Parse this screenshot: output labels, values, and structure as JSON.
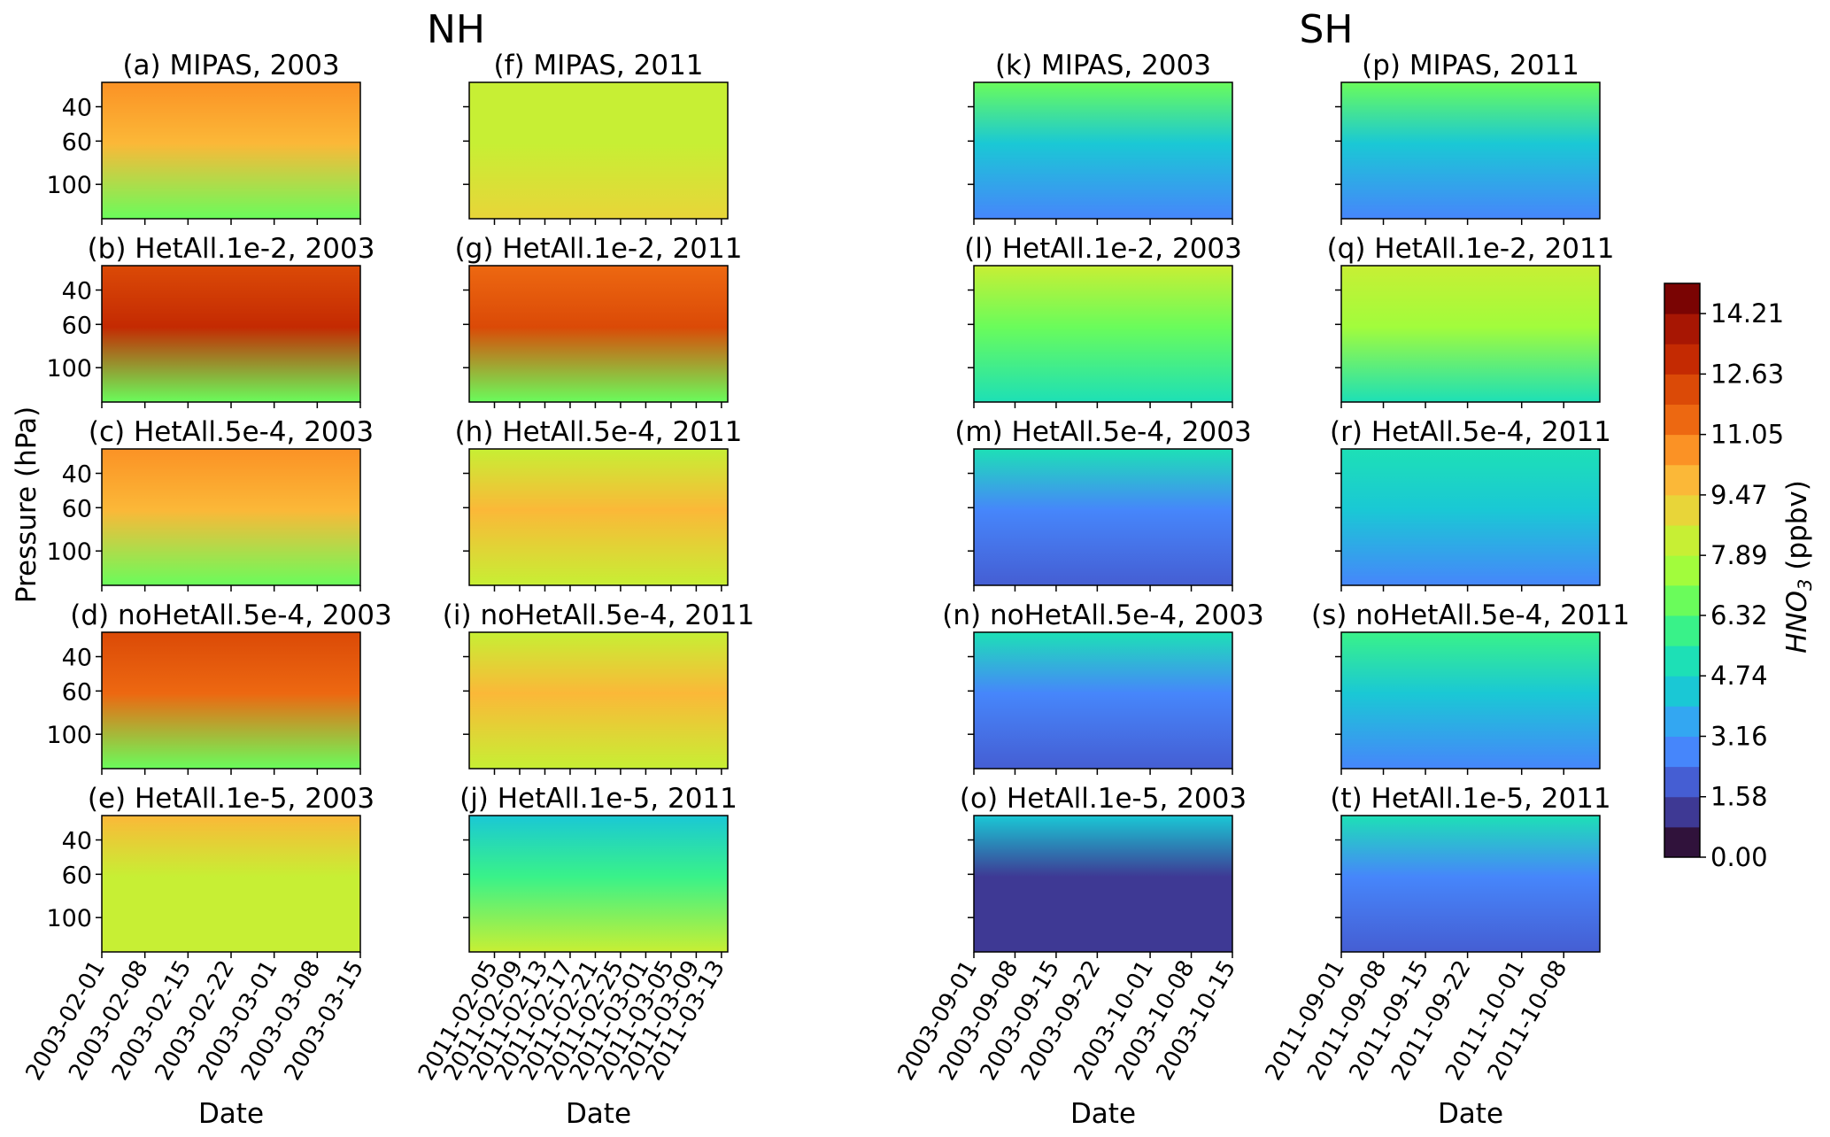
{
  "figure": {
    "hemisphere_labels": [
      "NH",
      "SH"
    ],
    "ylabel": "Pressure (hPa)",
    "xlabel": "Date",
    "colorbar_label": "HNO",
    "colorbar_subscript": "3",
    "colorbar_unit": " (ppbv)"
  },
  "chart_data": {
    "type": "heatmap",
    "variable": "HNO3 (ppbv)",
    "ylabel": "Pressure (hPa)",
    "xlabel": "Date",
    "y_ticks": [
      40,
      60,
      100
    ],
    "y_scale": "log",
    "ylim_hPa": [
      150,
      30
    ],
    "colorbar_ticks": [
      "0.00",
      "1.58",
      "3.16",
      "4.74",
      "6.32",
      "7.89",
      "9.47",
      "11.05",
      "12.63",
      "14.21"
    ],
    "color_levels": [
      0,
      0.79,
      1.58,
      2.37,
      3.16,
      3.95,
      4.74,
      5.53,
      6.32,
      7.11,
      7.89,
      8.68,
      9.47,
      10.26,
      11.05,
      11.84,
      12.63,
      13.42,
      14.21,
      15.0
    ],
    "columns": [
      {
        "hemisphere": "NH",
        "year": 2003,
        "start": "2003-02-01",
        "end": "2003-03-15",
        "x_ticks": [
          "2003-02-01",
          "2003-02-08",
          "2003-02-15",
          "2003-02-22",
          "2003-03-01",
          "2003-03-08",
          "2003-03-15"
        ]
      },
      {
        "hemisphere": "NH",
        "year": 2011,
        "start": "2011-02-01",
        "end": "2011-03-14",
        "x_ticks": [
          "2011-02-05",
          "2011-02-09",
          "2011-02-13",
          "2011-02-17",
          "2011-02-21",
          "2011-02-25",
          "2011-03-01",
          "2011-03-05",
          "2011-03-09",
          "2011-03-13"
        ]
      },
      {
        "hemisphere": "SH",
        "year": 2003,
        "start": "2003-09-01",
        "end": "2003-10-15",
        "x_ticks": [
          "2003-09-01",
          "2003-09-08",
          "2003-09-15",
          "2003-09-22",
          "2003-10-01",
          "2003-10-08",
          "2003-10-15"
        ]
      },
      {
        "hemisphere": "SH",
        "year": 2011,
        "start": "2011-09-01",
        "end": "2011-10-14",
        "x_ticks": [
          "2011-09-01",
          "2011-09-08",
          "2011-09-15",
          "2011-09-22",
          "2011-10-01",
          "2011-10-08"
        ]
      }
    ],
    "panels": [
      {
        "col": 0,
        "row": 0,
        "title": "(a) MIPAS, 2003",
        "top": 11.0,
        "mid": 9.5,
        "bottom": 7.0
      },
      {
        "col": 0,
        "row": 1,
        "title": "(b) HetAll.1e-2, 2003",
        "top": 12.0,
        "mid": 13.0,
        "bottom": 6.5
      },
      {
        "col": 0,
        "row": 2,
        "title": "(c) HetAll.5e-4, 2003",
        "top": 11.0,
        "mid": 10.0,
        "bottom": 6.8
      },
      {
        "col": 0,
        "row": 3,
        "title": "(d) noHetAll.5e-4, 2003",
        "top": 12.5,
        "mid": 11.5,
        "bottom": 7.0
      },
      {
        "col": 0,
        "row": 4,
        "title": "(e) HetAll.1e-5, 2003",
        "top": 10.0,
        "mid": 8.0,
        "bottom": 8.5
      },
      {
        "col": 1,
        "row": 0,
        "title": "(f) MIPAS, 2011",
        "top": 8.0,
        "mid": 8.5,
        "bottom": 8.8
      },
      {
        "col": 1,
        "row": 1,
        "title": "(g) HetAll.1e-2, 2011",
        "top": 11.5,
        "mid": 12.0,
        "bottom": 6.5
      },
      {
        "col": 1,
        "row": 2,
        "title": "(h) HetAll.5e-4, 2011",
        "top": 8.0,
        "mid": 9.5,
        "bottom": 8.5
      },
      {
        "col": 1,
        "row": 3,
        "title": "(i) noHetAll.5e-4, 2011",
        "top": 8.5,
        "mid": 10.0,
        "bottom": 8.5
      },
      {
        "col": 1,
        "row": 4,
        "title": "(j) HetAll.1e-5, 2011",
        "top": 4.5,
        "mid": 6.0,
        "bottom": 8.0
      },
      {
        "col": 2,
        "row": 0,
        "title": "(k) MIPAS, 2003",
        "top": 7.0,
        "mid": 4.0,
        "bottom": 2.5
      },
      {
        "col": 2,
        "row": 1,
        "title": "(l) HetAll.1e-2, 2003",
        "top": 8.5,
        "mid": 7.0,
        "bottom": 5.0
      },
      {
        "col": 2,
        "row": 2,
        "title": "(m) HetAll.5e-4, 2003",
        "top": 5.0,
        "mid": 3.0,
        "bottom": 2.2
      },
      {
        "col": 2,
        "row": 3,
        "title": "(n) noHetAll.5e-4, 2003",
        "top": 5.5,
        "mid": 3.0,
        "bottom": 2.0
      },
      {
        "col": 2,
        "row": 4,
        "title": "(o) HetAll.1e-5, 2003",
        "top": 4.0,
        "mid": 1.2,
        "bottom": 1.5
      },
      {
        "col": 3,
        "row": 0,
        "title": "(p) MIPAS, 2011",
        "top": 7.0,
        "mid": 4.5,
        "bottom": 3.0
      },
      {
        "col": 3,
        "row": 1,
        "title": "(q) HetAll.1e-2, 2011",
        "top": 8.5,
        "mid": 7.5,
        "bottom": 5.0
      },
      {
        "col": 3,
        "row": 2,
        "title": "(r) HetAll.5e-4, 2011",
        "top": 5.5,
        "mid": 4.0,
        "bottom": 3.0
      },
      {
        "col": 3,
        "row": 3,
        "title": "(s) noHetAll.5e-4, 2011",
        "top": 6.0,
        "mid": 4.5,
        "bottom": 3.0
      },
      {
        "col": 3,
        "row": 4,
        "title": "(t) HetAll.1e-5, 2011",
        "top": 5.0,
        "mid": 3.0,
        "bottom": 2.0
      }
    ]
  },
  "colors": {
    "levels": [
      "#30123b",
      "#3e3994",
      "#455ed3",
      "#4686fb",
      "#33a7f2",
      "#1ac8d5",
      "#1de0b6",
      "#39f289",
      "#6afc5b",
      "#a2fc3c",
      "#c7ef34",
      "#e8d539",
      "#fbb838",
      "#fb9225",
      "#ed6811",
      "#db4a07",
      "#c42a02",
      "#a71603",
      "#7a0403"
    ]
  }
}
